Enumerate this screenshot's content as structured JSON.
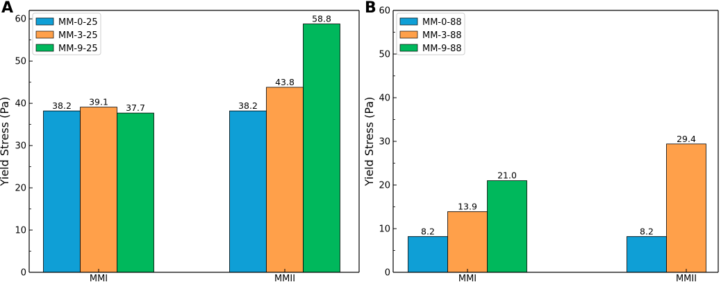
{
  "chart_data": [
    {
      "type": "bar",
      "panel_label": "A",
      "title": "",
      "xlabel": "",
      "ylabel": "Yield Stress (Pa)",
      "ylim": [
        0,
        62
      ],
      "yticks": [
        0,
        10,
        20,
        30,
        40,
        50,
        60
      ],
      "grid": false,
      "legend_position": "upper-left",
      "categories": [
        "MMI",
        "MMII"
      ],
      "series": [
        {
          "name": "MM-0-25",
          "color": "#0f9fd6",
          "values": [
            38.2,
            38.2
          ],
          "labels": [
            "38.2",
            "38.2"
          ]
        },
        {
          "name": "MM-3-25",
          "color": "#ffa04a",
          "values": [
            39.1,
            43.8
          ],
          "labels": [
            "39.1",
            "43.8"
          ]
        },
        {
          "name": "MM-9-25",
          "color": "#00b85c",
          "values": [
            37.7,
            58.8
          ],
          "labels": [
            "37.7",
            "58.8"
          ]
        }
      ]
    },
    {
      "type": "bar",
      "panel_label": "B",
      "title": "",
      "xlabel": "",
      "ylabel": "Yield Stress (Pa)",
      "ylim": [
        0,
        60
      ],
      "yticks": [
        0,
        10,
        20,
        30,
        40,
        50,
        60
      ],
      "grid": false,
      "legend_position": "upper-left",
      "categories": [
        "MMI",
        "MMII"
      ],
      "series": [
        {
          "name": "MM-0-88",
          "color": "#0f9fd6",
          "values": [
            8.2,
            8.2
          ],
          "labels": [
            "8.2",
            "8.2"
          ]
        },
        {
          "name": "MM-3-88",
          "color": "#ffa04a",
          "values": [
            13.9,
            29.4
          ],
          "labels": [
            "13.9",
            "29.4"
          ]
        },
        {
          "name": "MM-9-88",
          "color": "#00b85c",
          "values": [
            21.0,
            null
          ],
          "labels": [
            "21.0",
            null
          ]
        }
      ]
    }
  ]
}
